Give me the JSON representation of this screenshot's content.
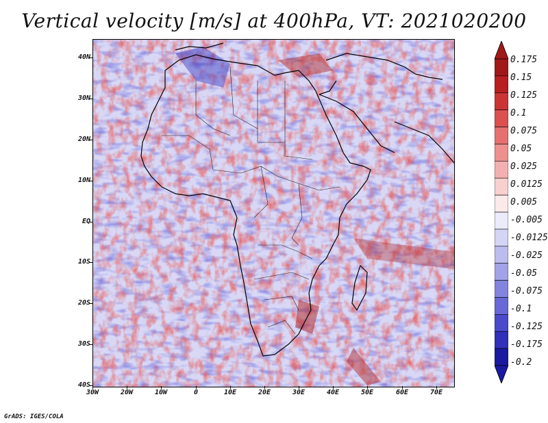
{
  "title": "Vertical velocity [m/s] at 400hPa, VT: 2021020200",
  "footer": "GrADS: IGES/COLA",
  "map": {
    "lat_labels": [
      "40N",
      "30N",
      "20N",
      "10N",
      "EQ",
      "10S",
      "20S",
      "30S",
      "40S"
    ],
    "lon_labels": [
      "30W",
      "20W",
      "10W",
      "0",
      "10E",
      "20E",
      "30E",
      "40E",
      "50E",
      "60E",
      "70E"
    ],
    "lat_range": [
      -40,
      45
    ],
    "lon_range": [
      -30,
      75
    ]
  },
  "colorbar": {
    "labels": [
      "0.175",
      "0.15",
      "0.125",
      "0.1",
      "0.075",
      "0.05",
      "0.025",
      "0.0125",
      "0.005",
      "-0.005",
      "-0.0125",
      "-0.025",
      "-0.05",
      "-0.075",
      "-0.1",
      "-0.125",
      "-0.175",
      "-0.2"
    ],
    "colors": [
      "#a01818",
      "#b82020",
      "#cc3434",
      "#dc5050",
      "#e67070",
      "#ee9090",
      "#f4b0b0",
      "#f8d0d0",
      "#fbeaea",
      "#ebebfa",
      "#d4d4f4",
      "#bcbcef",
      "#a2a2e8",
      "#8484df",
      "#6868d6",
      "#4a4acc",
      "#3030bb",
      "#1a1aa0"
    ]
  },
  "colors": {
    "background": "#ffffff",
    "coastline": "#000000"
  }
}
